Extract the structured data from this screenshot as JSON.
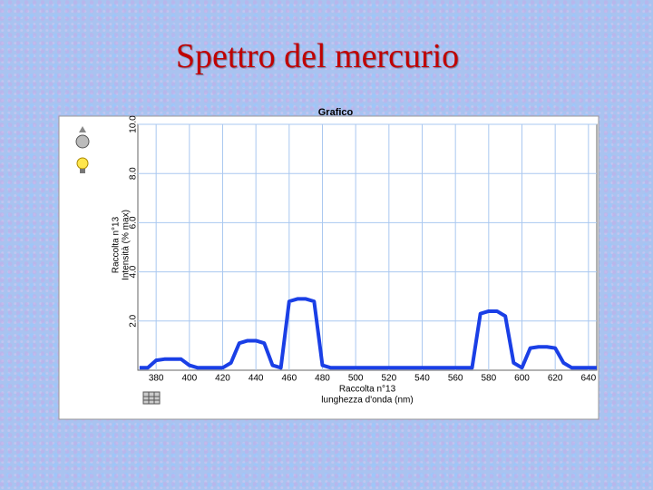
{
  "chart_data": {
    "type": "line",
    "title": "Spettro del mercurio",
    "subtitle": "Grafico",
    "x_label": [
      "Raccolta n°13",
      "lunghezza d'onda (nm)"
    ],
    "y_label": [
      "Raccolta n°13",
      "Intensità (% max)"
    ],
    "x": [
      370,
      375,
      380,
      385,
      390,
      395,
      400,
      405,
      410,
      415,
      420,
      425,
      430,
      435,
      440,
      445,
      450,
      455,
      460,
      465,
      470,
      475,
      480,
      485,
      490,
      495,
      500,
      505,
      510,
      515,
      520,
      525,
      530,
      535,
      540,
      545,
      550,
      555,
      560,
      565,
      570,
      575,
      580,
      585,
      590,
      595,
      600,
      605,
      610,
      615,
      620,
      625,
      630,
      635,
      640,
      645
    ],
    "series": [
      {
        "name": "Raccolta n°13",
        "color": "#1a3fe6",
        "values": [
          0.1,
          0.1,
          0.4,
          0.45,
          0.45,
          0.45,
          0.2,
          0.1,
          0.1,
          0.1,
          0.1,
          0.3,
          1.1,
          1.2,
          1.2,
          1.1,
          0.2,
          0.1,
          2.8,
          2.9,
          2.9,
          2.8,
          0.2,
          0.1,
          0.1,
          0.1,
          0.1,
          0.1,
          0.1,
          0.1,
          0.1,
          0.1,
          0.1,
          0.1,
          0.1,
          0.1,
          0.1,
          0.1,
          0.1,
          0.1,
          0.1,
          2.3,
          2.4,
          2.4,
          2.2,
          0.3,
          0.1,
          0.9,
          0.95,
          0.95,
          0.9,
          0.3,
          0.1,
          0.1,
          0.1,
          0.1
        ]
      }
    ],
    "xlim": [
      369,
      645
    ],
    "xticks": [
      380,
      400,
      420,
      440,
      460,
      480,
      500,
      520,
      540,
      560,
      580,
      600,
      620,
      640
    ],
    "ylim": [
      0,
      10
    ],
    "yticks": [
      {
        "value": 2,
        "label": "2.0"
      },
      {
        "value": 4,
        "label": "4.0"
      },
      {
        "value": 6,
        "label": "6.0"
      },
      {
        "value": 8,
        "label": "8.0"
      },
      {
        "value": 10,
        "label": "10.0"
      }
    ],
    "grid": true
  }
}
